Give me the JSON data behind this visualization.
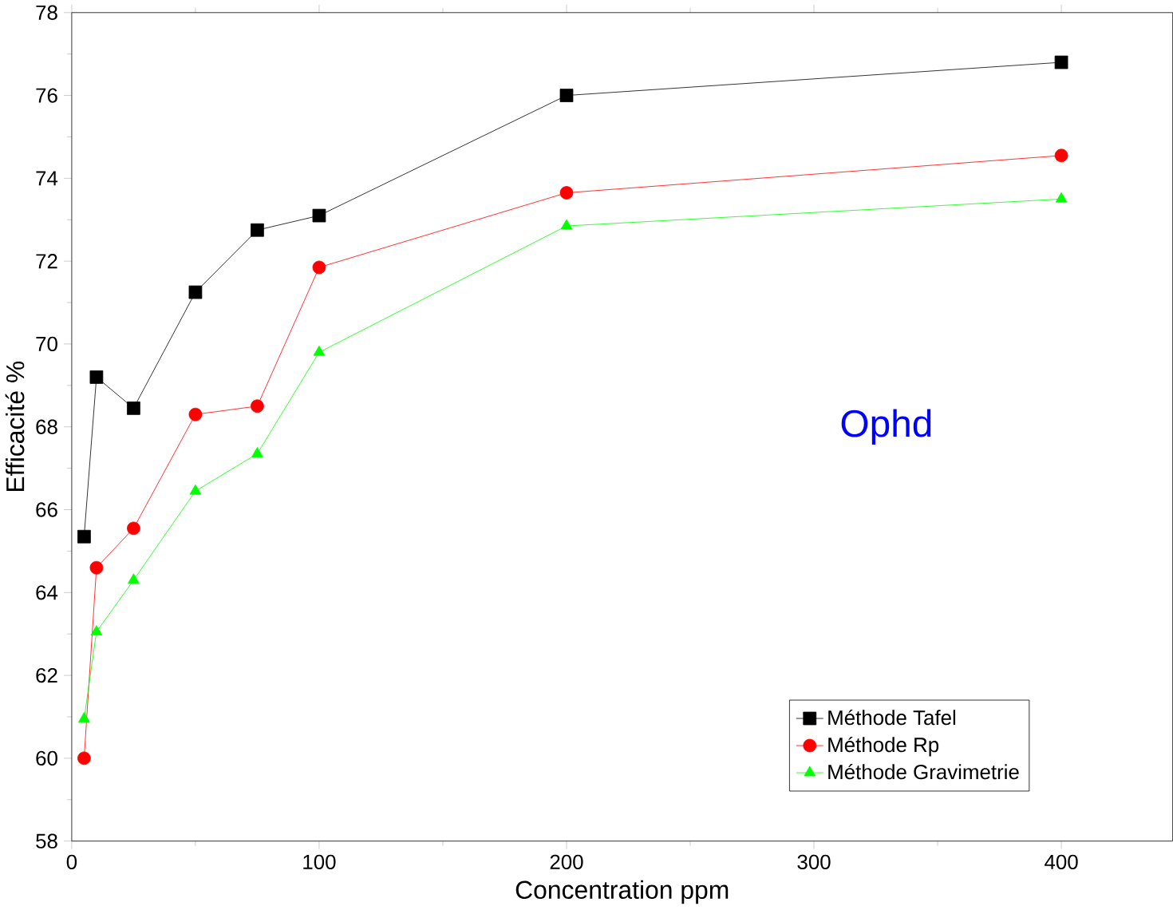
{
  "chart_data": {
    "type": "line",
    "xlabel": "Concentration ppm",
    "ylabel": "Efficacité %",
    "annotations": [
      "Ophd"
    ],
    "x": [
      5,
      10,
      25,
      50,
      75,
      100,
      200,
      400
    ],
    "series": [
      {
        "name": "Méthode Tafel",
        "color": "#000000",
        "marker": "square",
        "values": [
          65.35,
          69.2,
          68.45,
          71.25,
          72.75,
          73.1,
          76.0,
          76.8
        ]
      },
      {
        "name": "Méthode Rp",
        "color": "#ff0000",
        "marker": "circle",
        "values": [
          60.0,
          64.6,
          65.55,
          68.3,
          68.5,
          71.85,
          73.65,
          74.55
        ]
      },
      {
        "name": "Méthode Gravimetrie",
        "color": "#00ff00",
        "marker": "triangle",
        "values": [
          60.95,
          63.05,
          64.3,
          66.45,
          67.35,
          69.8,
          72.85,
          73.5
        ]
      }
    ],
    "xlim": [
      0,
      445
    ],
    "xticks": [
      0,
      100,
      200,
      300,
      400
    ],
    "ylim": [
      58,
      78
    ],
    "yticks": [
      58,
      60,
      62,
      64,
      66,
      68,
      70,
      72,
      74,
      76,
      78
    ],
    "grid": false,
    "legend": "bottom right",
    "line_style": "solid"
  }
}
